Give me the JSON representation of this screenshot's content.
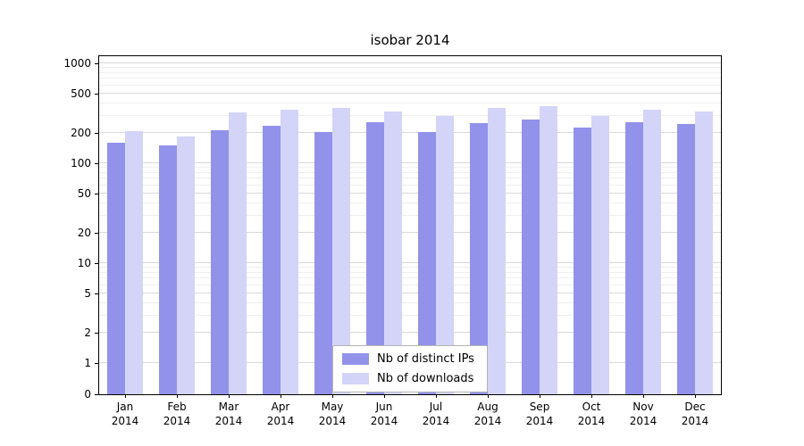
{
  "chart_data": {
    "type": "bar",
    "title": "isobar 2014",
    "categories": [
      "Jan",
      "Feb",
      "Mar",
      "Apr",
      "May",
      "Jun",
      "Jul",
      "Aug",
      "Sep",
      "Oct",
      "Nov",
      "Dec"
    ],
    "year_label": "2014",
    "series": [
      {
        "name": "Nb of distinct IPs",
        "color": "#9292ea",
        "values": [
          160,
          150,
          215,
          235,
          205,
          260,
          205,
          250,
          275,
          230,
          255,
          245
        ]
      },
      {
        "name": "Nb of downloads",
        "color": "#d4d4f8",
        "values": [
          210,
          185,
          320,
          345,
          355,
          330,
          300,
          355,
          370,
          295,
          340,
          330
        ]
      }
    ],
    "yticks": [
      0,
      1,
      2,
      5,
      10,
      20,
      50,
      100,
      200,
      500,
      1000
    ],
    "yscale": "symlog",
    "ylim": [
      0,
      1200
    ],
    "grid": true,
    "legend_position": "lower center"
  }
}
